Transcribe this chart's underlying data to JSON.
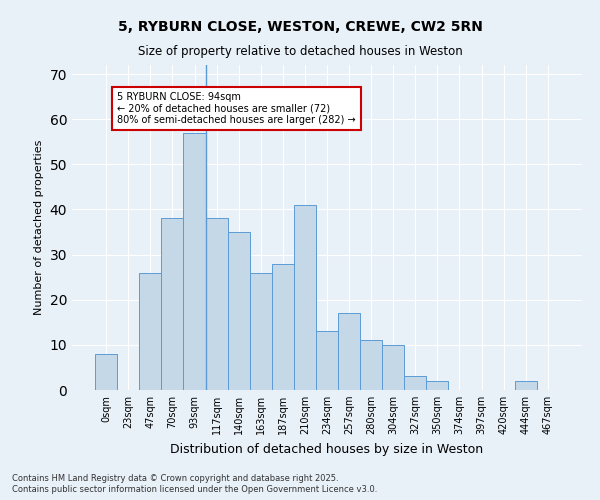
{
  "title1": "5, RYBURN CLOSE, WESTON, CREWE, CW2 5RN",
  "title2": "Size of property relative to detached houses in Weston",
  "xlabel": "Distribution of detached houses by size in Weston",
  "ylabel": "Number of detached properties",
  "bar_color": "#c5d8e8",
  "bar_edge_color": "#5b9bd5",
  "bg_color": "#e8f0f8",
  "categories": [
    "0sqm",
    "23sqm",
    "47sqm",
    "70sqm",
    "93sqm",
    "117sqm",
    "140sqm",
    "163sqm",
    "187sqm",
    "210sqm",
    "234sqm",
    "257sqm",
    "280sqm",
    "304sqm",
    "327sqm",
    "350sqm",
    "374sqm",
    "397sqm",
    "420sqm",
    "444sqm",
    "467sqm"
  ],
  "values": [
    8,
    0,
    26,
    38,
    57,
    38,
    35,
    26,
    28,
    41,
    13,
    17,
    11,
    10,
    3,
    2,
    0,
    0,
    0,
    2,
    0
  ],
  "vline_x": 4.5,
  "annotation_text": "5 RYBURN CLOSE: 94sqm\n← 20% of detached houses are smaller (72)\n80% of semi-detached houses are larger (282) →",
  "annotation_box_color": "#ffffff",
  "annotation_box_edge": "#cc0000",
  "ylim": [
    0,
    72
  ],
  "yticks": [
    0,
    10,
    20,
    30,
    40,
    50,
    60,
    70
  ],
  "footer1": "Contains HM Land Registry data © Crown copyright and database right 2025.",
  "footer2": "Contains public sector information licensed under the Open Government Licence v3.0."
}
